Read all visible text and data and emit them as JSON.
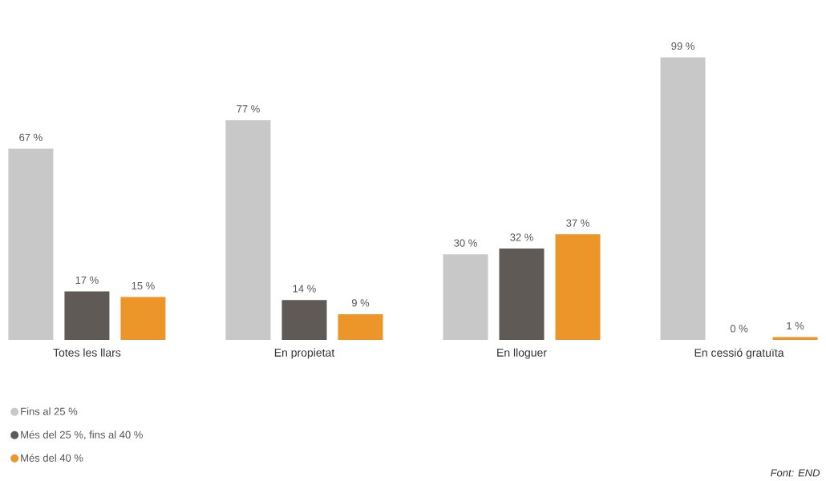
{
  "chart_data": {
    "type": "bar",
    "categories": [
      "Totes les llars",
      "En propietat",
      "En lloguer",
      "En cessió gratuïta"
    ],
    "series": [
      {
        "name": "Fins al 25 %",
        "color": "#c8c8c8",
        "values": [
          67,
          77,
          30,
          99
        ],
        "value_labels": [
          "67 %",
          "77 %",
          "30 %",
          "99 %"
        ]
      },
      {
        "name": "Més del 25 %, fins al 40 %",
        "color": "#5f5a56",
        "values": [
          17,
          14,
          32,
          0
        ],
        "value_labels": [
          "17 %",
          "14 %",
          "32 %",
          "0 %"
        ]
      },
      {
        "name": "Més del 40 %",
        "color": "#ec962a",
        "values": [
          15,
          9,
          37,
          1
        ],
        "value_labels": [
          "15 %",
          "9 %",
          "37 %",
          "1 %"
        ]
      }
    ],
    "legend": "bottom",
    "annotations": [
      "Font: END"
    ]
  }
}
